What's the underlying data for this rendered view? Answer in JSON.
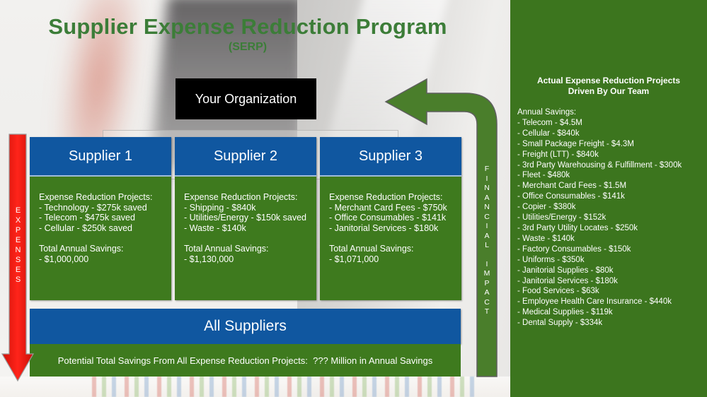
{
  "title": {
    "main": "Supplier Expense Reduction Program",
    "sub": "(SERP)"
  },
  "org_box": {
    "label": "Your Organization"
  },
  "expenses_arrow": {
    "label": "EXPENSES"
  },
  "financial_arrow": {
    "word1": "FINANCIAL",
    "word2": "IMPACT"
  },
  "suppliers": [
    {
      "name": "Supplier 1",
      "projects_heading": "Expense Reduction Projects:",
      "projects": [
        "- Technology - $275k saved",
        "- Telecom - $475k saved",
        "- Cellular - $250k saved"
      ],
      "total_heading": "Total Annual Savings:",
      "total": "- $1,000,000"
    },
    {
      "name": "Supplier 2",
      "projects_heading": "Expense Reduction Projects:",
      "projects": [
        "- Shipping - $840k",
        "- Utilities/Energy - $150k saved",
        "- Waste - $140k"
      ],
      "total_heading": "Total Annual Savings:",
      "total": "- $1,130,000"
    },
    {
      "name": "Supplier 3",
      "projects_heading": "Expense Reduction Projects:",
      "projects": [
        "- Merchant Card Fees - $750k",
        "- Office Consumables - $141k",
        "- Janitorial Services - $180k"
      ],
      "total_heading": "Total Annual Savings:",
      "total": "- $1,071,000"
    }
  ],
  "all_suppliers": {
    "label": "All Suppliers",
    "savings_line": "Potential Total Savings From All Expense Reduction Projects:  ??? Million in Annual Savings"
  },
  "right_panel": {
    "heading_line1": "Actual Expense Reduction Projects",
    "heading_line2": "Driven By Our Team",
    "list_heading": "Annual Savings:",
    "items": [
      "- Telecom - $4.5M",
      "- Cellular - $840k",
      "- Small Package Freight - $4.3M",
      "- Freight (LTT) - $840k",
      "- 3rd Party Warehousing & Fulfillment - $300k",
      "- Fleet - $480k",
      "- Merchant Card Fees - $1.5M",
      "- Office Consumables - $141k",
      "- Copier - $380k",
      "- Utilities/Energy - $152k",
      "- 3rd Party Utility Locates - $250k",
      "- Waste - $140k",
      "- Factory Consumables - $150k",
      "- Uniforms - $350k",
      "- Janitorial Supplies - $80k",
      "- Janitorial Services - $180k",
      "- Food Services - $63k",
      "- Employee Health Care Insurance - $440k",
      "- Medical Supplies - $119k",
      "- Dental Supply - $334k"
    ]
  },
  "colors": {
    "blue": "#1057a0",
    "green": "#3e7a1e",
    "panel-green": "#3c751e",
    "arrow-green": "#4a7e2b",
    "title-green": "#3c7d38",
    "red": "#ee1a10",
    "black": "#000000"
  }
}
